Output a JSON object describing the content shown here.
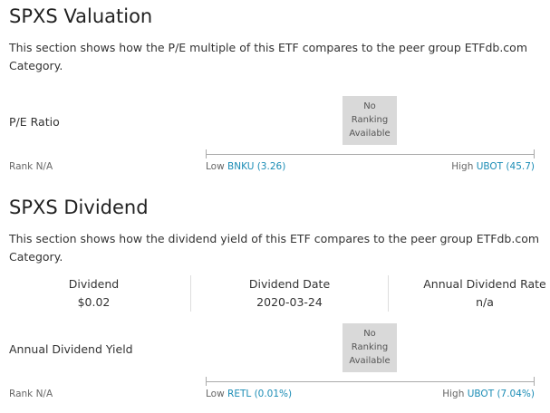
{
  "sections": [
    {
      "title": "SPXS Valuation",
      "description": "This section shows how the P/E multiple of this ETF compares to the peer group ETFdb.com Category.",
      "metric": "P/E Ratio",
      "badge": [
        "No",
        "Ranking",
        "Available"
      ],
      "rank": "Rank N/A",
      "low_label": "Low",
      "low_link": "BNKU (3.26)",
      "high_label": "High",
      "high_link": "UBOT (45.7)"
    },
    {
      "title": "SPXS Dividend",
      "description": "This section shows how the dividend yield of this ETF compares to the peer group ETFdb.com Category.",
      "stats": [
        {
          "label": "Dividend",
          "value": "$0.02"
        },
        {
          "label": "Dividend Date",
          "value": "2020-03-24"
        },
        {
          "label": "Annual Dividend Rate",
          "value": "n/a"
        }
      ],
      "metric": "Annual Dividend Yield",
      "badge": [
        "No",
        "Ranking",
        "Available"
      ],
      "rank": "Rank N/A",
      "low_label": "Low",
      "low_link": "RETL (0.01%)",
      "high_label": "High",
      "high_link": "UBOT (7.04%)"
    }
  ]
}
